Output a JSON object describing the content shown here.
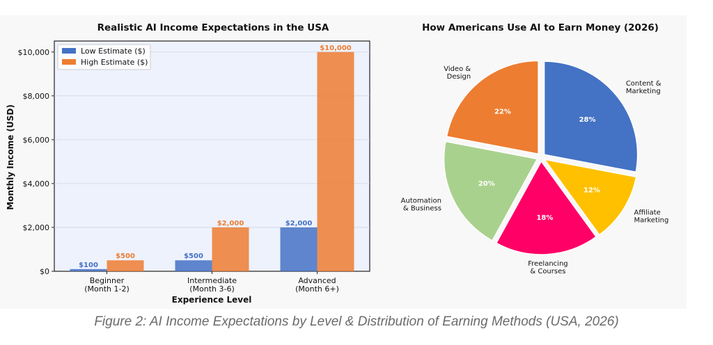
{
  "caption": "Figure 2: AI Income Expectations by Level & Distribution of Earning Methods (USA, 2026)",
  "chart_data": [
    {
      "type": "bar",
      "title": "Realistic AI Income Expectations in the USA",
      "xlabel": "Experience Level",
      "ylabel": "Monthly Income (USD)",
      "categories": [
        [
          "Beginner",
          "(Month 1-2)"
        ],
        [
          "Intermediate",
          "(Month 3-6)"
        ],
        [
          "Advanced",
          "(Month 6+)"
        ]
      ],
      "series": [
        {
          "name": "Low Estimate ($)",
          "color": "#4472c4",
          "values": [
            100,
            500,
            2000
          ],
          "value_labels": [
            "$100",
            "$500",
            "$2,000"
          ]
        },
        {
          "name": "High Estimate ($)",
          "color": "#ed7d31",
          "values": [
            500,
            2000,
            10000
          ],
          "value_labels": [
            "$500",
            "$2,000",
            "$10,000"
          ]
        }
      ],
      "ylim": [
        0,
        10500
      ],
      "yticks": [
        0,
        2000,
        4000,
        6000,
        8000,
        10000
      ],
      "ytick_labels": [
        "$0",
        "$2,000",
        "$4,000",
        "$6,000",
        "$8,000",
        "$10,000"
      ],
      "grid": "horizontal",
      "legend": "top-left"
    },
    {
      "type": "pie",
      "title": "How Americans Use AI to Earn Money (2026)",
      "slices": [
        {
          "label": [
            "Content &",
            "Marketing"
          ],
          "value": 28,
          "pct_label": "28%",
          "color": "#4472c4"
        },
        {
          "label": [
            "Affiliate",
            "Marketing"
          ],
          "value": 12,
          "pct_label": "12%",
          "color": "#ffc000"
        },
        {
          "label": [
            "Freelancing",
            "& Courses"
          ],
          "value": 18,
          "pct_label": "18%",
          "color": "#ff0066"
        },
        {
          "label": [
            "Automation",
            "& Business"
          ],
          "value": 20,
          "pct_label": "20%",
          "color": "#a9d18e"
        },
        {
          "label": [
            "Video &",
            "Design"
          ],
          "value": 22,
          "pct_label": "22%",
          "color": "#ed7d31"
        }
      ],
      "legend": "none"
    }
  ]
}
